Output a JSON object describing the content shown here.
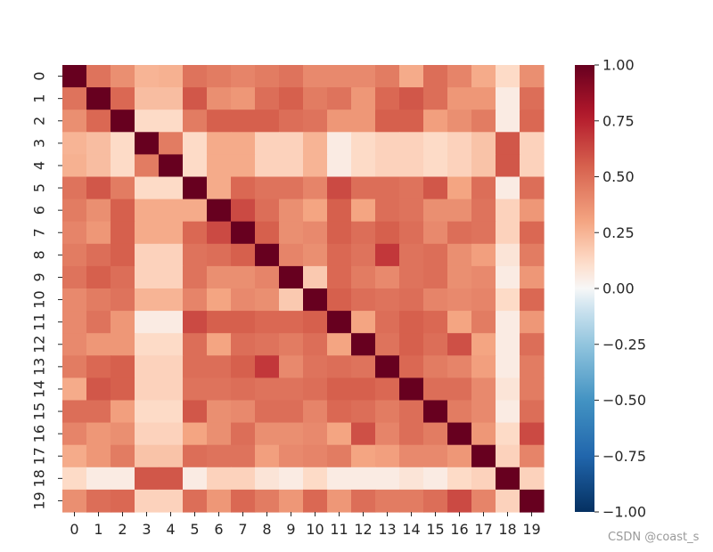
{
  "chart_data": {
    "type": "heatmap",
    "labels": [
      "0",
      "1",
      "2",
      "3",
      "4",
      "5",
      "6",
      "7",
      "8",
      "9",
      "10",
      "11",
      "12",
      "13",
      "14",
      "15",
      "16",
      "17",
      "18",
      "19"
    ],
    "colorbar": {
      "min": -1.0,
      "max": 1.0,
      "cmap": "RdBu_r",
      "ticks": [
        1.0,
        0.75,
        0.5,
        0.25,
        0.0,
        -0.25,
        -0.5,
        -0.75,
        -1.0
      ],
      "tick_labels": [
        "1.00",
        "0.75",
        "0.50",
        "0.25",
        "0.00",
        "−0.25",
        "−0.50",
        "−0.75",
        "−1.00"
      ]
    },
    "matrix": [
      [
        1.0,
        0.48,
        0.38,
        0.25,
        0.26,
        0.48,
        0.45,
        0.42,
        0.45,
        0.48,
        0.4,
        0.4,
        0.4,
        0.45,
        0.28,
        0.5,
        0.42,
        0.28,
        0.12,
        0.38
      ],
      [
        0.48,
        1.0,
        0.52,
        0.22,
        0.22,
        0.58,
        0.38,
        0.35,
        0.5,
        0.55,
        0.45,
        0.48,
        0.35,
        0.52,
        0.58,
        0.5,
        0.35,
        0.35,
        0.05,
        0.5
      ],
      [
        0.38,
        0.52,
        1.0,
        0.12,
        0.12,
        0.45,
        0.55,
        0.55,
        0.55,
        0.5,
        0.48,
        0.35,
        0.35,
        0.55,
        0.55,
        0.32,
        0.38,
        0.45,
        0.05,
        0.52
      ],
      [
        0.25,
        0.22,
        0.12,
        1.0,
        0.45,
        0.12,
        0.28,
        0.28,
        0.15,
        0.15,
        0.25,
        0.05,
        0.12,
        0.15,
        0.15,
        0.12,
        0.15,
        0.2,
        0.58,
        0.15
      ],
      [
        0.26,
        0.22,
        0.12,
        0.45,
        1.0,
        0.12,
        0.28,
        0.28,
        0.15,
        0.15,
        0.25,
        0.05,
        0.12,
        0.15,
        0.15,
        0.12,
        0.15,
        0.2,
        0.58,
        0.15
      ],
      [
        0.48,
        0.58,
        0.45,
        0.12,
        0.12,
        1.0,
        0.28,
        0.52,
        0.48,
        0.48,
        0.42,
        0.62,
        0.5,
        0.5,
        0.48,
        0.58,
        0.3,
        0.5,
        0.05,
        0.5
      ],
      [
        0.45,
        0.38,
        0.55,
        0.28,
        0.28,
        0.28,
        1.0,
        0.62,
        0.5,
        0.38,
        0.3,
        0.55,
        0.3,
        0.5,
        0.48,
        0.38,
        0.38,
        0.48,
        0.15,
        0.35
      ],
      [
        0.42,
        0.35,
        0.55,
        0.28,
        0.28,
        0.52,
        0.62,
        1.0,
        0.55,
        0.38,
        0.4,
        0.55,
        0.5,
        0.55,
        0.5,
        0.4,
        0.5,
        0.48,
        0.15,
        0.52
      ],
      [
        0.45,
        0.5,
        0.55,
        0.15,
        0.15,
        0.48,
        0.5,
        0.55,
        1.0,
        0.42,
        0.38,
        0.52,
        0.48,
        0.68,
        0.48,
        0.5,
        0.38,
        0.32,
        0.08,
        0.45
      ],
      [
        0.48,
        0.55,
        0.5,
        0.15,
        0.15,
        0.48,
        0.38,
        0.38,
        0.42,
        1.0,
        0.18,
        0.52,
        0.45,
        0.4,
        0.48,
        0.5,
        0.38,
        0.4,
        0.05,
        0.35
      ],
      [
        0.4,
        0.45,
        0.48,
        0.25,
        0.25,
        0.42,
        0.3,
        0.4,
        0.38,
        0.18,
        1.0,
        0.55,
        0.5,
        0.48,
        0.5,
        0.42,
        0.4,
        0.42,
        0.12,
        0.52
      ],
      [
        0.4,
        0.48,
        0.35,
        0.05,
        0.05,
        0.62,
        0.55,
        0.55,
        0.52,
        0.52,
        0.55,
        1.0,
        0.3,
        0.5,
        0.55,
        0.52,
        0.3,
        0.45,
        0.05,
        0.35
      ],
      [
        0.4,
        0.35,
        0.35,
        0.12,
        0.12,
        0.5,
        0.3,
        0.5,
        0.48,
        0.45,
        0.5,
        0.3,
        1.0,
        0.48,
        0.55,
        0.5,
        0.6,
        0.3,
        0.05,
        0.5
      ],
      [
        0.45,
        0.52,
        0.55,
        0.15,
        0.15,
        0.5,
        0.5,
        0.55,
        0.68,
        0.4,
        0.48,
        0.5,
        0.48,
        1.0,
        0.52,
        0.45,
        0.42,
        0.32,
        0.05,
        0.45
      ],
      [
        0.28,
        0.58,
        0.55,
        0.15,
        0.15,
        0.48,
        0.48,
        0.5,
        0.48,
        0.48,
        0.5,
        0.55,
        0.55,
        0.52,
        1.0,
        0.5,
        0.5,
        0.4,
        0.08,
        0.45
      ],
      [
        0.5,
        0.5,
        0.32,
        0.12,
        0.12,
        0.58,
        0.38,
        0.4,
        0.5,
        0.5,
        0.42,
        0.52,
        0.5,
        0.45,
        0.5,
        1.0,
        0.45,
        0.4,
        0.05,
        0.5
      ],
      [
        0.42,
        0.35,
        0.38,
        0.15,
        0.15,
        0.3,
        0.38,
        0.5,
        0.38,
        0.38,
        0.4,
        0.3,
        0.6,
        0.42,
        0.5,
        0.45,
        1.0,
        0.35,
        0.12,
        0.62
      ],
      [
        0.28,
        0.35,
        0.45,
        0.2,
        0.2,
        0.5,
        0.48,
        0.48,
        0.32,
        0.4,
        0.42,
        0.45,
        0.3,
        0.32,
        0.4,
        0.4,
        0.35,
        1.0,
        0.15,
        0.42
      ],
      [
        0.12,
        0.05,
        0.05,
        0.58,
        0.58,
        0.05,
        0.15,
        0.15,
        0.08,
        0.05,
        0.12,
        0.05,
        0.05,
        0.05,
        0.08,
        0.05,
        0.12,
        0.15,
        1.0,
        0.15
      ],
      [
        0.38,
        0.5,
        0.52,
        0.15,
        0.15,
        0.5,
        0.35,
        0.52,
        0.45,
        0.35,
        0.52,
        0.35,
        0.5,
        0.45,
        0.45,
        0.5,
        0.62,
        0.42,
        0.15,
        1.0
      ]
    ]
  },
  "watermark": "CSDN @coast_s"
}
